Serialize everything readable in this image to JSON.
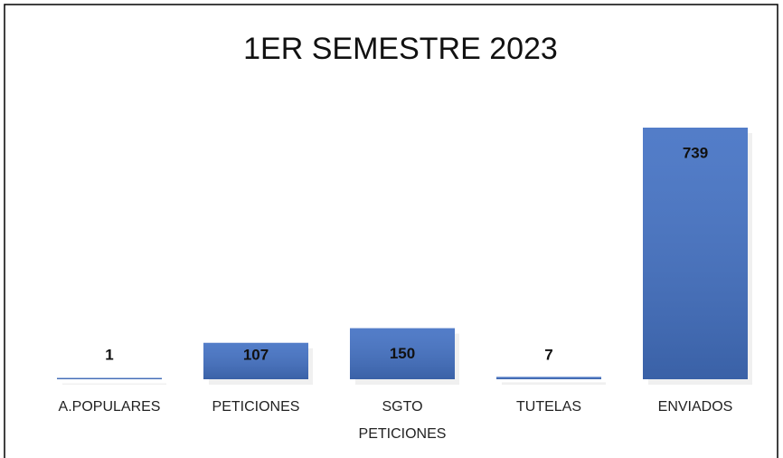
{
  "chart_data": {
    "type": "bar",
    "title": "1ER SEMESTRE 2023",
    "categories": [
      "A.POPULARES",
      "PETICIONES",
      "SGTO PETICIONES",
      "TUTELAS",
      "ENVIADOS"
    ],
    "values": [
      1,
      107,
      150,
      7,
      739
    ],
    "color": "#4472c4"
  }
}
